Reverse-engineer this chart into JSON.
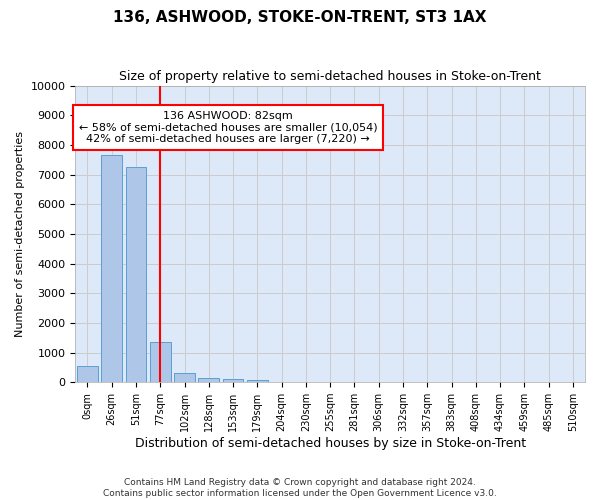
{
  "title": "136, ASHWOOD, STOKE-ON-TRENT, ST3 1AX",
  "subtitle": "Size of property relative to semi-detached houses in Stoke-on-Trent",
  "xlabel": "Distribution of semi-detached houses by size in Stoke-on-Trent",
  "ylabel": "Number of semi-detached properties",
  "footer_line1": "Contains HM Land Registry data © Crown copyright and database right 2024.",
  "footer_line2": "Contains public sector information licensed under the Open Government Licence v3.0.",
  "bar_labels": [
    "0sqm",
    "26sqm",
    "51sqm",
    "77sqm",
    "102sqm",
    "128sqm",
    "153sqm",
    "179sqm",
    "204sqm",
    "230sqm",
    "255sqm",
    "281sqm",
    "306sqm",
    "332sqm",
    "357sqm",
    "383sqm",
    "408sqm",
    "434sqm",
    "459sqm",
    "485sqm",
    "510sqm"
  ],
  "bar_values": [
    550,
    7650,
    7250,
    1350,
    300,
    155,
    100,
    75,
    0,
    0,
    0,
    0,
    0,
    0,
    0,
    0,
    0,
    0,
    0,
    0,
    0
  ],
  "bar_color": "#aec6e8",
  "bar_edge_color": "#5a9fd4",
  "ylim": [
    0,
    10000
  ],
  "yticks": [
    0,
    1000,
    2000,
    3000,
    4000,
    5000,
    6000,
    7000,
    8000,
    9000,
    10000
  ],
  "property_line_x": 3.0,
  "annotation_title": "136 ASHWOOD: 82sqm",
  "annotation_line1": "← 58% of semi-detached houses are smaller (10,054)",
  "annotation_line2": "42% of semi-detached houses are larger (7,220) →",
  "annotation_box_color": "white",
  "annotation_box_edge_color": "red",
  "vline_color": "red",
  "grid_color": "#cccccc",
  "background_color": "#dde8f8"
}
